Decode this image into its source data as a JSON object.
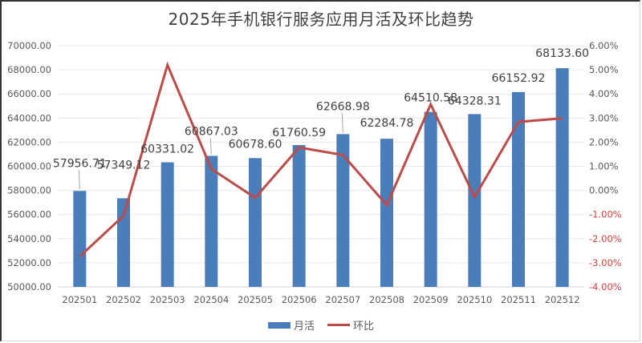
{
  "chart_data": {
    "type": "bar+line",
    "title": "2025年手机银行服务应用月活及环比趋势",
    "categories": [
      "202501",
      "202502",
      "202503",
      "202504",
      "202505",
      "202506",
      "202507",
      "202508",
      "202509",
      "202510",
      "202511",
      "202512"
    ],
    "series": [
      {
        "name": "月活",
        "type": "bar",
        "axis": "left",
        "color": "#4a7ebb",
        "values": [
          57956.71,
          57349.12,
          60331.02,
          60867.03,
          60678.6,
          61760.59,
          62668.98,
          62284.78,
          64510.58,
          64328.31,
          66152.92,
          68133.6
        ],
        "labels": [
          "57956.71",
          "57349.12",
          "60331.02",
          "60867.03",
          "60678.60",
          "61760.59",
          "62668.98",
          "62284.78",
          "64510.58",
          "64328.31",
          "66152.92",
          "68133.60"
        ]
      },
      {
        "name": "环比",
        "type": "line",
        "axis": "right",
        "color": "#be4b48",
        "values": [
          -2.74,
          -1.05,
          5.2,
          0.89,
          -0.31,
          1.78,
          1.47,
          -0.61,
          3.57,
          -0.28,
          2.84,
          2.99
        ]
      }
    ],
    "left_axis": {
      "min": 50000,
      "max": 70000,
      "step": 2000,
      "ticks": [
        "50000.00",
        "52000.00",
        "54000.00",
        "56000.00",
        "58000.00",
        "60000.00",
        "62000.00",
        "64000.00",
        "66000.00",
        "68000.00",
        "70000.00"
      ]
    },
    "right_axis": {
      "min": -4,
      "max": 6,
      "step": 1,
      "ticks": [
        "-4.00%",
        "-3.00%",
        "-2.00%",
        "-1.00%",
        "0.00%",
        "1.00%",
        "2.00%",
        "3.00%",
        "4.00%",
        "5.00%",
        "6.00%"
      ],
      "negative_color": "#e03c3c",
      "positive_color": "#595959"
    },
    "grid": true,
    "legend_position": "bottom"
  },
  "legend": {
    "bar_label": "月活",
    "line_label": "环比"
  }
}
